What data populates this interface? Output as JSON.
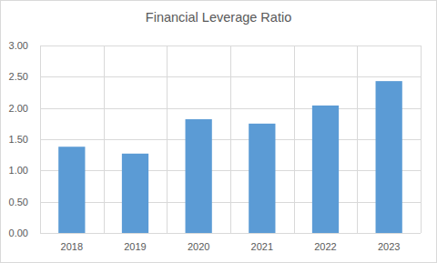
{
  "chart_data": {
    "type": "bar",
    "title": "Financial Leverage Ratio",
    "categories": [
      "2018",
      "2019",
      "2020",
      "2021",
      "2022",
      "2023"
    ],
    "values": [
      1.38,
      1.27,
      1.82,
      1.75,
      2.04,
      2.43
    ],
    "color": "#5b9bd5",
    "ylim": [
      0,
      3
    ],
    "yticks": [
      {
        "value": 0,
        "label": "0.00"
      },
      {
        "value": 0.5,
        "label": "0.50"
      },
      {
        "value": 1,
        "label": "1.00"
      },
      {
        "value": 1.5,
        "label": "1.50"
      },
      {
        "value": 2,
        "label": "2.00"
      },
      {
        "value": 2.5,
        "label": "2.50"
      },
      {
        "value": 3,
        "label": "3.00"
      }
    ],
    "grid": true
  }
}
